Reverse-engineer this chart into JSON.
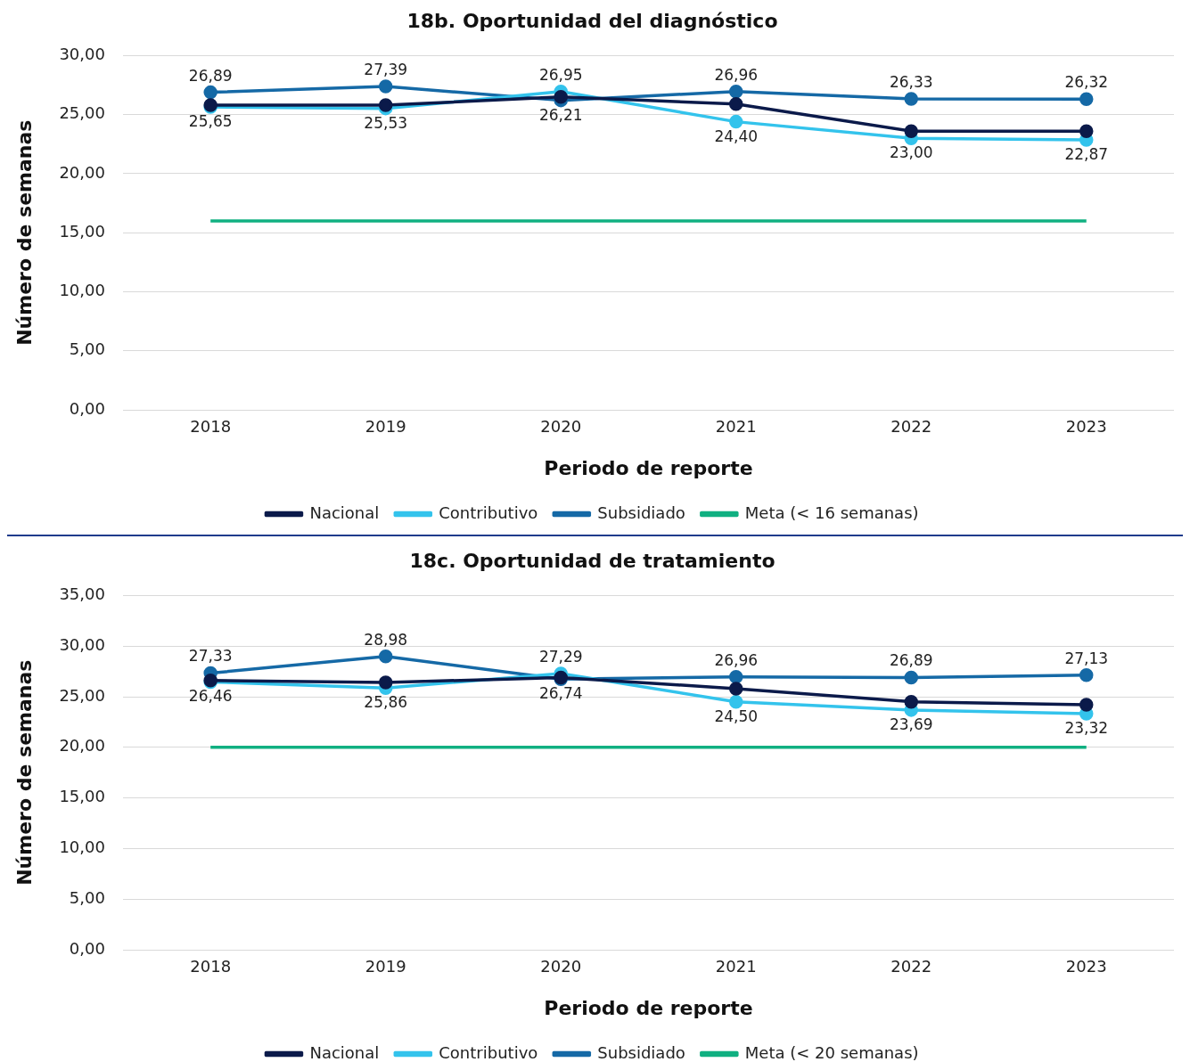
{
  "chart_data": [
    {
      "type": "line",
      "title": "18b. Oportunidad del diagnóstico",
      "xlabel": "Periodo de reporte",
      "ylabel": "Número de semanas",
      "categories": [
        "2018",
        "2019",
        "2020",
        "2021",
        "2022",
        "2023"
      ],
      "ylim": [
        0,
        30
      ],
      "yticks": [
        {
          "value": 0,
          "label": "0,00"
        },
        {
          "value": 5,
          "label": "5,00"
        },
        {
          "value": 10,
          "label": "10,00"
        },
        {
          "value": 15,
          "label": "15,00"
        },
        {
          "value": 20,
          "label": "20,00"
        },
        {
          "value": 25,
          "label": "25,00"
        },
        {
          "value": 30,
          "label": "30,00"
        }
      ],
      "grid": "y",
      "legend": "bottom",
      "marker": "circle",
      "series": [
        {
          "name": "Nacional",
          "color": "#0b1a4a",
          "values": [
            25.8,
            25.8,
            26.5,
            25.9,
            23.6,
            23.6
          ]
        },
        {
          "name": "Contributivo",
          "color": "#33c3ec",
          "values": [
            25.65,
            25.53,
            26.95,
            24.4,
            23.0,
            22.87
          ],
          "value_labels": [
            "25,65",
            "25,53",
            "26,95",
            "24,40",
            "23,00",
            "22,87"
          ]
        },
        {
          "name": "Subsidiado",
          "color": "#1569a6",
          "values": [
            26.89,
            27.39,
            26.21,
            26.96,
            26.33,
            26.32
          ],
          "value_labels": [
            "26,89",
            "27,39",
            "26,21",
            "26,96",
            "26,33",
            "26,32"
          ]
        },
        {
          "name": "Meta (< 16 semanas)",
          "color": "#10b081",
          "marker": "none",
          "values": [
            16,
            16,
            16,
            16,
            16,
            16
          ]
        }
      ]
    },
    {
      "type": "line",
      "title": "18c. Oportunidad de tratamiento",
      "xlabel": "Periodo de reporte",
      "ylabel": "Número de semanas",
      "categories": [
        "2018",
        "2019",
        "2020",
        "2021",
        "2022",
        "2023"
      ],
      "ylim": [
        0,
        35
      ],
      "yticks": [
        {
          "value": 0,
          "label": "0,00"
        },
        {
          "value": 5,
          "label": "5,00"
        },
        {
          "value": 10,
          "label": "10,00"
        },
        {
          "value": 15,
          "label": "15,00"
        },
        {
          "value": 20,
          "label": "20,00"
        },
        {
          "value": 25,
          "label": "25,00"
        },
        {
          "value": 30,
          "label": "30,00"
        },
        {
          "value": 35,
          "label": "35,00"
        }
      ],
      "grid": "y",
      "legend": "bottom",
      "marker": "circle",
      "series": [
        {
          "name": "Nacional",
          "color": "#0b1a4a",
          "values": [
            26.6,
            26.4,
            26.9,
            25.8,
            24.5,
            24.2
          ]
        },
        {
          "name": "Contributivo",
          "color": "#33c3ec",
          "values": [
            26.46,
            25.86,
            27.29,
            24.5,
            23.69,
            23.32
          ],
          "value_labels": [
            "26,46",
            "25,86",
            "27,29",
            "24,50",
            "23,69",
            "23,32"
          ]
        },
        {
          "name": "Subsidiado",
          "color": "#1569a6",
          "values": [
            27.33,
            28.98,
            26.74,
            26.96,
            26.89,
            27.13
          ],
          "value_labels": [
            "27,33",
            "28,98",
            "26,74",
            "26,96",
            "26,89",
            "27,13"
          ]
        },
        {
          "name": "Meta (< 20 semanas)",
          "color": "#10b081",
          "marker": "none",
          "values": [
            20,
            20,
            20,
            20,
            20,
            20
          ]
        }
      ]
    }
  ]
}
